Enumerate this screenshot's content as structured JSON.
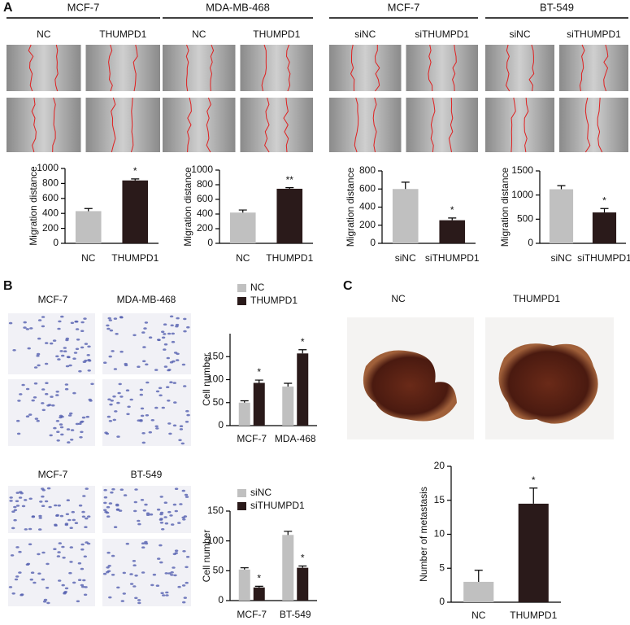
{
  "panel_labels": {
    "a": "A",
    "b": "B",
    "c": "C"
  },
  "panel_a_groups": [
    {
      "title": "MCF-7",
      "conditions": [
        "NC",
        "THUMPD1"
      ]
    },
    {
      "title": "MDA-MB-468",
      "conditions": [
        "NC",
        "THUMPD1"
      ]
    },
    {
      "title": "MCF-7",
      "conditions": [
        "siNC",
        "siTHUMPD1"
      ]
    },
    {
      "title": "BT-549",
      "conditions": [
        "siNC",
        "siTHUMPD1"
      ]
    }
  ],
  "panel_b_image_labels": [
    [
      "MCF-7",
      "MDA-MB-468"
    ],
    [
      "MCF-7",
      "BT-549"
    ]
  ],
  "panel_c_image_labels": [
    "NC",
    "THUMPD1"
  ],
  "chart_data": [
    {
      "type": "bar",
      "y_label": "Migration distance",
      "categories": [
        "NC",
        "THUMPD1"
      ],
      "values": [
        430,
        840
      ],
      "errors": [
        35,
        20
      ],
      "colors": [
        "#c0c0c0",
        "#2a1a1a"
      ],
      "ylim": [
        0,
        1000
      ],
      "yticks": [
        0,
        200,
        400,
        600,
        800,
        1000
      ],
      "annotations": [
        {
          "text": "*",
          "category": "THUMPD1"
        }
      ]
    },
    {
      "type": "bar",
      "y_label": "Migration distance",
      "categories": [
        "NC",
        "THUMPD1"
      ],
      "values": [
        420,
        745
      ],
      "errors": [
        35,
        15
      ],
      "colors": [
        "#c0c0c0",
        "#2a1a1a"
      ],
      "ylim": [
        0,
        1000
      ],
      "yticks": [
        0,
        200,
        400,
        600,
        800,
        1000
      ],
      "annotations": [
        {
          "text": "**",
          "category": "THUMPD1"
        }
      ]
    },
    {
      "type": "bar",
      "y_label": "Migration distance",
      "categories": [
        "siNC",
        "siTHUMPD1"
      ],
      "values": [
        600,
        255
      ],
      "errors": [
        75,
        25
      ],
      "colors": [
        "#c0c0c0",
        "#2a1a1a"
      ],
      "ylim": [
        0,
        800
      ],
      "yticks": [
        0,
        200,
        400,
        600,
        800
      ],
      "annotations": [
        {
          "text": "*",
          "category": "siTHUMPD1"
        }
      ]
    },
    {
      "type": "bar",
      "y_label": "Migration distance",
      "categories": [
        "siNC",
        "siTHUMPD1"
      ],
      "values": [
        1120,
        640
      ],
      "errors": [
        75,
        80
      ],
      "colors": [
        "#c0c0c0",
        "#2a1a1a"
      ],
      "ylim": [
        0,
        1500
      ],
      "yticks": [
        0,
        500,
        1000,
        1500
      ],
      "annotations": [
        {
          "text": "*",
          "category": "siTHUMPD1"
        }
      ]
    },
    {
      "type": "grouped_bar",
      "y_label": "Cell number",
      "categories": [
        "MCF-7",
        "MDA-468"
      ],
      "series": [
        {
          "name": "NC",
          "color": "#c0c0c0",
          "values": [
            50,
            85
          ],
          "errors": [
            4,
            7
          ]
        },
        {
          "name": "THUMPD1",
          "color": "#2a1a1a",
          "values": [
            93,
            157
          ],
          "errors": [
            6,
            8
          ]
        }
      ],
      "ylim": [
        0,
        200
      ],
      "yticks": [
        0,
        50,
        100,
        150
      ],
      "annotations": [
        {
          "text": "*",
          "category": "MCF-7",
          "series": "THUMPD1"
        },
        {
          "text": "*",
          "category": "MDA-468",
          "series": "THUMPD1"
        }
      ]
    },
    {
      "type": "grouped_bar",
      "y_label": "Cell number",
      "categories": [
        "MCF-7",
        "BT-549"
      ],
      "series": [
        {
          "name": "siNC",
          "color": "#c0c0c0",
          "values": [
            52,
            110
          ],
          "errors": [
            3,
            6
          ]
        },
        {
          "name": "siTHUMPD1",
          "color": "#2a1a1a",
          "values": [
            22,
            55
          ],
          "errors": [
            2,
            3
          ]
        }
      ],
      "ylim": [
        0,
        150
      ],
      "yticks": [
        0,
        50,
        100,
        150
      ],
      "annotations": [
        {
          "text": "*",
          "category": "MCF-7",
          "series": "siTHUMPD1"
        },
        {
          "text": "*",
          "category": "BT-549",
          "series": "siTHUMPD1"
        }
      ]
    },
    {
      "type": "bar",
      "y_label": "Number of metastasis",
      "categories": [
        "NC",
        "THUMPD1"
      ],
      "values": [
        3,
        14.5
      ],
      "errors": [
        1.7,
        2.3
      ],
      "colors": [
        "#c0c0c0",
        "#2a1a1a"
      ],
      "ylim": [
        0,
        20
      ],
      "yticks": [
        0,
        5,
        10,
        15,
        20
      ],
      "annotations": [
        {
          "text": "*",
          "category": "THUMPD1"
        }
      ]
    }
  ]
}
